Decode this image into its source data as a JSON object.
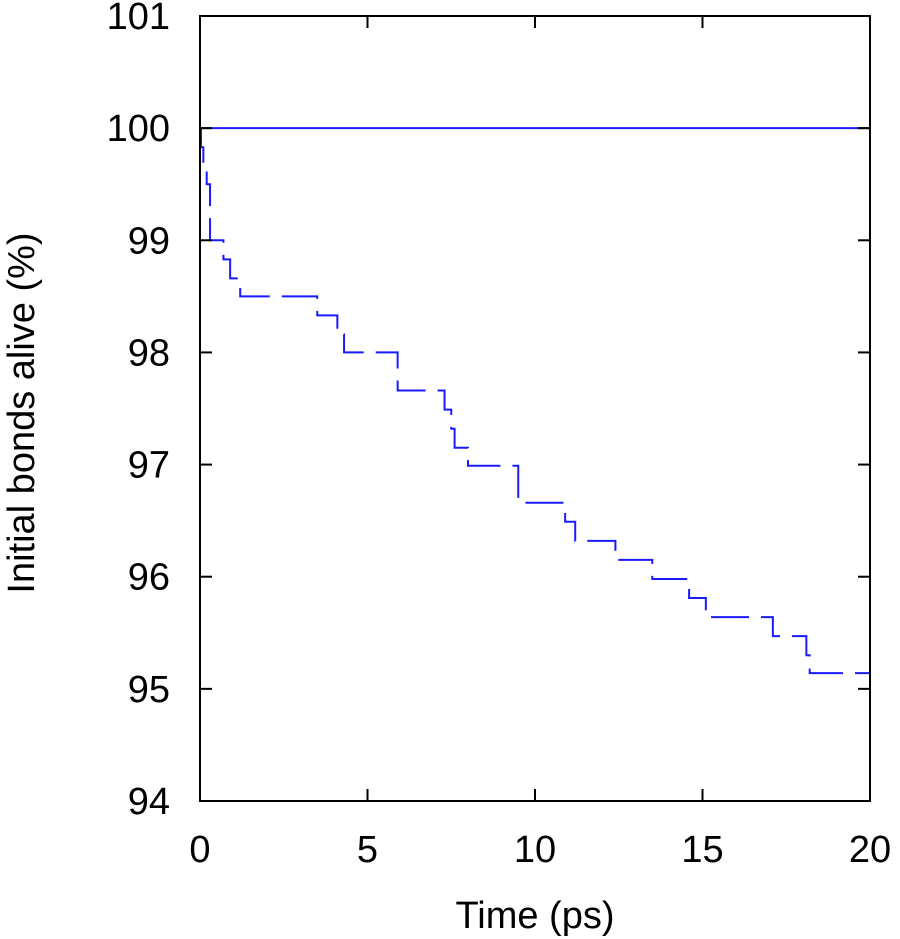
{
  "chart_data": {
    "type": "line",
    "title": "",
    "xlabel": "Time (ps)",
    "ylabel": "Initial bonds alive (%)",
    "xlim": [
      0,
      20
    ],
    "ylim": [
      94,
      101
    ],
    "xticks": [
      0,
      5,
      10,
      15,
      20
    ],
    "yticks": [
      94,
      95,
      96,
      97,
      98,
      99,
      100,
      101
    ],
    "xtick_labels": [
      "0",
      "5",
      "10",
      "15",
      "20"
    ],
    "ytick_labels": [
      "94",
      "95",
      "96",
      "97",
      "98",
      "99",
      "100",
      "101"
    ],
    "grid": false,
    "legend": "none",
    "colors": {
      "series": "#1a1aff",
      "axis": "#000000"
    },
    "series": [
      {
        "name": "solid reference",
        "style": "solid",
        "points": [
          [
            0,
            100
          ],
          [
            20,
            100
          ]
        ]
      },
      {
        "name": "dashed decay",
        "style": "dashed",
        "steps": [
          [
            0,
            100
          ],
          [
            0.03,
            99.83
          ],
          [
            0.1,
            99.66
          ],
          [
            0.2,
            99.5
          ],
          [
            0.3,
            99.0
          ],
          [
            0.7,
            98.83
          ],
          [
            0.9,
            98.66
          ],
          [
            1.2,
            98.5
          ],
          [
            3.5,
            98.33
          ],
          [
            4.1,
            98.16
          ],
          [
            4.3,
            98.0
          ],
          [
            5.9,
            97.66
          ],
          [
            7.3,
            97.49
          ],
          [
            7.5,
            97.32
          ],
          [
            7.6,
            97.15
          ],
          [
            8.0,
            96.99
          ],
          [
            9.5,
            96.66
          ],
          [
            10.9,
            96.49
          ],
          [
            11.2,
            96.32
          ],
          [
            12.4,
            96.15
          ],
          [
            13.5,
            95.98
          ],
          [
            14.6,
            95.81
          ],
          [
            15.1,
            95.64
          ],
          [
            17.1,
            95.47
          ],
          [
            18.1,
            95.3
          ],
          [
            18.2,
            95.14
          ],
          [
            20,
            95.14
          ]
        ]
      }
    ]
  }
}
